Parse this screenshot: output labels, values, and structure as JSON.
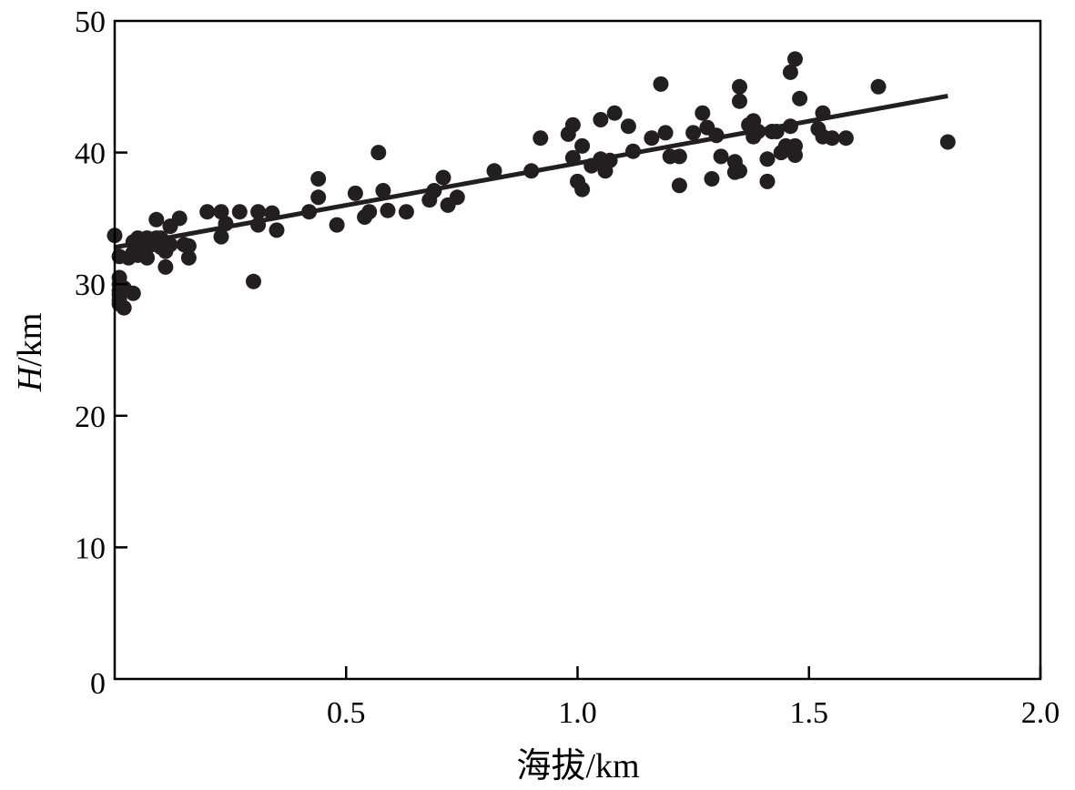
{
  "chart_data": {
    "type": "scatter",
    "xlabel_prefix": "海拔",
    "xlabel_unit": "/km",
    "ylabel_var": "H",
    "ylabel_unit": "/km",
    "xlim": [
      0,
      2.0
    ],
    "ylim": [
      0,
      50
    ],
    "x_ticks": [
      {
        "value": 0.5,
        "label": "0.5"
      },
      {
        "value": 1.0,
        "label": "1.0"
      },
      {
        "value": 1.5,
        "label": "1.5"
      },
      {
        "value": 2.0,
        "label": "2.0"
      }
    ],
    "y_ticks": [
      {
        "value": 0,
        "label": "0"
      },
      {
        "value": 10,
        "label": "10"
      },
      {
        "value": 20,
        "label": "20"
      },
      {
        "value": 30,
        "label": "30"
      },
      {
        "value": 40,
        "label": "40"
      },
      {
        "value": 50,
        "label": "50"
      }
    ],
    "grid": false,
    "point_color": "#231f20",
    "points": [
      [
        0.0,
        33.7
      ],
      [
        0.01,
        32.1
      ],
      [
        0.01,
        30.5
      ],
      [
        0.01,
        30.0
      ],
      [
        0.01,
        29.5
      ],
      [
        0.01,
        29.2
      ],
      [
        0.01,
        28.8
      ],
      [
        0.01,
        28.5
      ],
      [
        0.02,
        28.2
      ],
      [
        0.02,
        29.7
      ],
      [
        0.03,
        32.0
      ],
      [
        0.04,
        33.2
      ],
      [
        0.04,
        32.4
      ],
      [
        0.04,
        29.3
      ],
      [
        0.05,
        33.5
      ],
      [
        0.05,
        32.2
      ],
      [
        0.06,
        33.0
      ],
      [
        0.06,
        32.3
      ],
      [
        0.07,
        33.5
      ],
      [
        0.07,
        32.0
      ],
      [
        0.08,
        33.0
      ],
      [
        0.09,
        34.9
      ],
      [
        0.09,
        33.5
      ],
      [
        0.1,
        33.5
      ],
      [
        0.1,
        32.8
      ],
      [
        0.11,
        32.5
      ],
      [
        0.11,
        31.3
      ],
      [
        0.12,
        34.4
      ],
      [
        0.12,
        33.0
      ],
      [
        0.14,
        35.0
      ],
      [
        0.15,
        33.0
      ],
      [
        0.16,
        32.0
      ],
      [
        0.16,
        32.9
      ],
      [
        0.2,
        35.5
      ],
      [
        0.23,
        35.5
      ],
      [
        0.23,
        33.6
      ],
      [
        0.24,
        34.6
      ],
      [
        0.27,
        35.5
      ],
      [
        0.3,
        30.2
      ],
      [
        0.31,
        35.5
      ],
      [
        0.31,
        34.5
      ],
      [
        0.34,
        35.4
      ],
      [
        0.35,
        34.1
      ],
      [
        0.42,
        35.5
      ],
      [
        0.44,
        38.0
      ],
      [
        0.44,
        36.6
      ],
      [
        0.48,
        34.5
      ],
      [
        0.52,
        36.9
      ],
      [
        0.54,
        35.1
      ],
      [
        0.55,
        35.5
      ],
      [
        0.57,
        40.0
      ],
      [
        0.58,
        37.1
      ],
      [
        0.59,
        35.6
      ],
      [
        0.63,
        35.5
      ],
      [
        0.68,
        36.4
      ],
      [
        0.69,
        37.1
      ],
      [
        0.71,
        38.1
      ],
      [
        0.72,
        36.0
      ],
      [
        0.74,
        36.6
      ],
      [
        0.82,
        38.6
      ],
      [
        0.9,
        38.6
      ],
      [
        0.92,
        41.1
      ],
      [
        0.98,
        41.4
      ],
      [
        0.99,
        42.1
      ],
      [
        0.99,
        39.6
      ],
      [
        1.0,
        37.8
      ],
      [
        1.01,
        37.2
      ],
      [
        1.01,
        40.5
      ],
      [
        1.03,
        39.0
      ],
      [
        1.05,
        42.5
      ],
      [
        1.05,
        39.5
      ],
      [
        1.06,
        38.6
      ],
      [
        1.07,
        39.4
      ],
      [
        1.08,
        43.0
      ],
      [
        1.11,
        42.0
      ],
      [
        1.12,
        40.1
      ],
      [
        1.16,
        41.1
      ],
      [
        1.18,
        45.2
      ],
      [
        1.19,
        41.5
      ],
      [
        1.2,
        39.7
      ],
      [
        1.22,
        39.7
      ],
      [
        1.22,
        37.5
      ],
      [
        1.25,
        41.5
      ],
      [
        1.27,
        43.0
      ],
      [
        1.28,
        41.9
      ],
      [
        1.29,
        38.0
      ],
      [
        1.3,
        41.3
      ],
      [
        1.31,
        39.7
      ],
      [
        1.34,
        39.3
      ],
      [
        1.34,
        38.5
      ],
      [
        1.35,
        45.0
      ],
      [
        1.35,
        43.9
      ],
      [
        1.35,
        38.6
      ],
      [
        1.37,
        42.1
      ],
      [
        1.38,
        42.4
      ],
      [
        1.38,
        41.2
      ],
      [
        1.39,
        41.6
      ],
      [
        1.41,
        39.5
      ],
      [
        1.41,
        37.8
      ],
      [
        1.42,
        41.6
      ],
      [
        1.43,
        41.6
      ],
      [
        1.44,
        40.0
      ],
      [
        1.45,
        40.5
      ],
      [
        1.46,
        42.0
      ],
      [
        1.46,
        46.1
      ],
      [
        1.47,
        47.1
      ],
      [
        1.47,
        40.5
      ],
      [
        1.47,
        39.8
      ],
      [
        1.48,
        44.1
      ],
      [
        1.52,
        41.8
      ],
      [
        1.53,
        41.2
      ],
      [
        1.53,
        43.0
      ],
      [
        1.55,
        41.1
      ],
      [
        1.58,
        41.1
      ],
      [
        1.65,
        45.0
      ],
      [
        1.8,
        40.8
      ]
    ],
    "regression_line": {
      "x": [
        0.0,
        1.8
      ],
      "y": [
        32.8,
        44.3
      ],
      "color": "#231f20"
    }
  }
}
